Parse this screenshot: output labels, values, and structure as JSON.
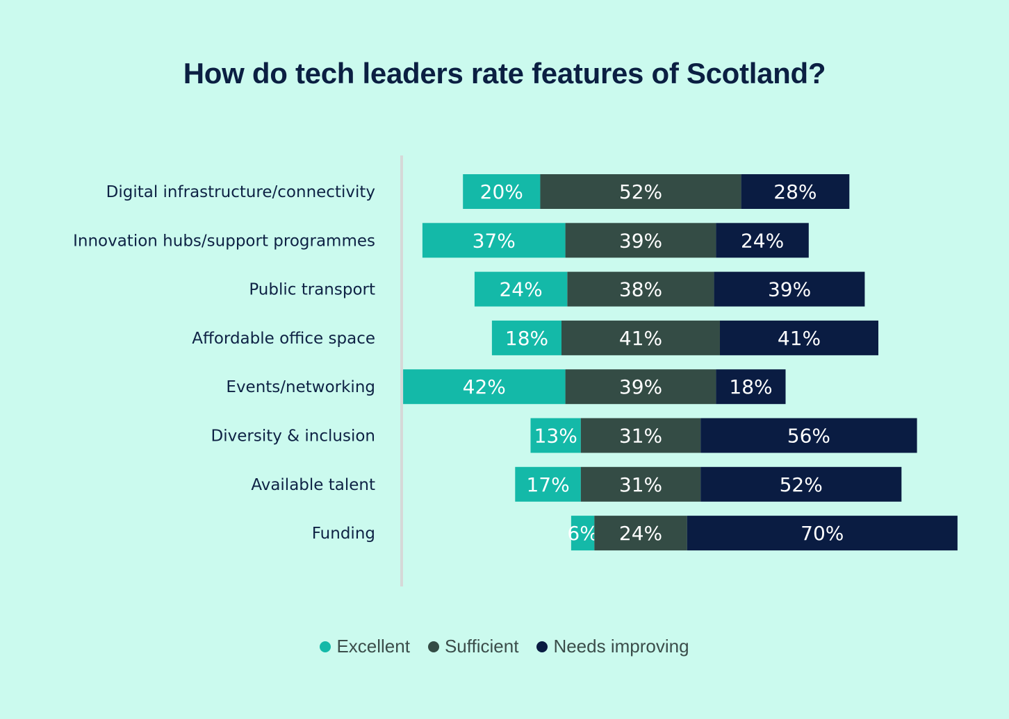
{
  "chart_data": {
    "type": "bar",
    "orientation": "horizontal",
    "stacked": true,
    "diverging": true,
    "title": "How do tech leaders rate features of Scotland?",
    "xlabel": "",
    "ylabel": "",
    "grid": false,
    "legend_position": "bottom-center",
    "categories": [
      "Digital infrastructure/connectivity",
      "Innovation hubs/support programmes",
      "Public transport",
      "Affordable office space",
      "Events/networking",
      "Diversity & inclusion",
      "Available talent",
      "Funding"
    ],
    "series": [
      {
        "name": "Excellent",
        "color": "#14b9a8",
        "values": [
          20,
          37,
          24,
          18,
          42,
          13,
          17,
          6
        ]
      },
      {
        "name": "Sufficient",
        "color": "#344c45",
        "values": [
          52,
          39,
          38,
          41,
          39,
          31,
          31,
          24
        ]
      },
      {
        "name": "Needs improving",
        "color": "#0a1c42",
        "values": [
          28,
          24,
          39,
          41,
          18,
          56,
          52,
          70
        ]
      }
    ],
    "value_suffix": "%"
  },
  "colors": {
    "background": "#cbfaee",
    "title": "#0b1f42",
    "axis_line": "#d6d8d8"
  }
}
